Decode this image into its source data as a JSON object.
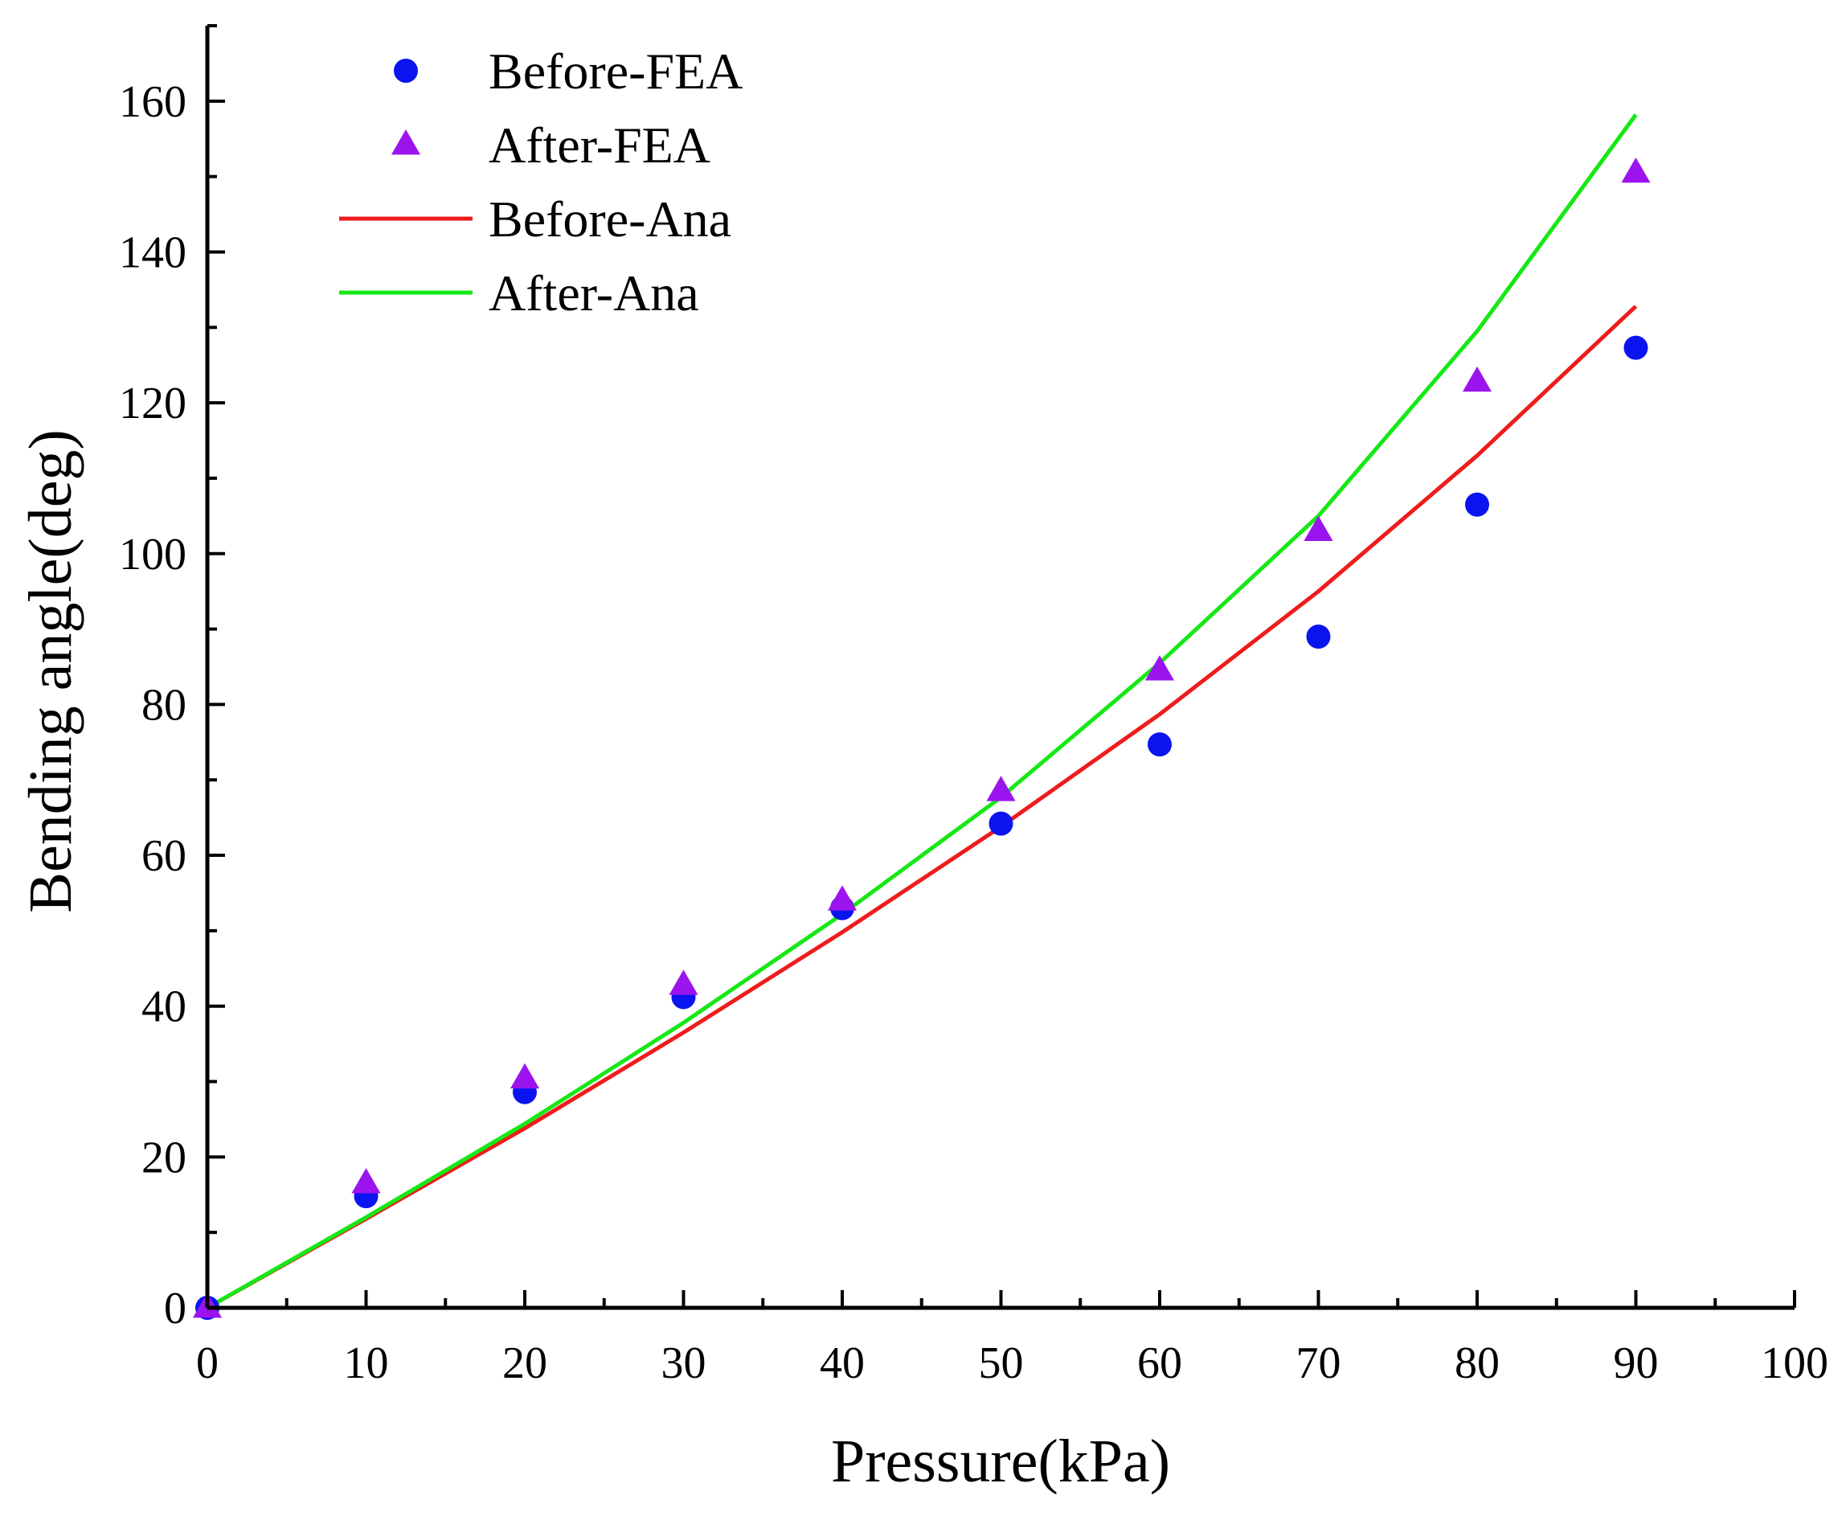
{
  "chart_data": {
    "type": "scatter",
    "title": "",
    "xlabel": "Pressure(kPa)",
    "ylabel": "Bending angle(deg)",
    "xlim": [
      0,
      100
    ],
    "ylim": [
      0,
      170
    ],
    "x_ticks": [
      0,
      10,
      20,
      30,
      40,
      50,
      60,
      70,
      80,
      90,
      100
    ],
    "x_tick_labels": [
      "0",
      "10",
      "20",
      "30",
      "40",
      "50",
      "60",
      "70",
      "80",
      "90",
      "100"
    ],
    "y_ticks": [
      0,
      20,
      40,
      60,
      80,
      100,
      120,
      140,
      160
    ],
    "y_tick_labels": [
      "0",
      "20",
      "40",
      "60",
      "80",
      "100",
      "120",
      "140",
      "160"
    ],
    "legend_position": "top-left",
    "grid": false,
    "series": [
      {
        "name": "Before-FEA",
        "kind": "scatter",
        "marker": "circle",
        "color": "#0a14ee",
        "x": [
          0,
          10,
          20,
          30,
          40,
          50,
          60,
          70,
          80,
          90
        ],
        "y": [
          0,
          14.8,
          28.6,
          41.2,
          53.0,
          64.2,
          74.7,
          89.0,
          106.5,
          127.3
        ]
      },
      {
        "name": "After-FEA",
        "kind": "scatter",
        "marker": "triangle",
        "color": "#9b14ee",
        "x": [
          0,
          10,
          20,
          30,
          40,
          50,
          60,
          70,
          80,
          90
        ],
        "y": [
          0,
          16.5,
          30.4,
          42.8,
          54.0,
          68.5,
          84.5,
          103.0,
          122.8,
          150.5
        ]
      },
      {
        "name": "Before-Ana",
        "kind": "line",
        "color": "#ee1c1c",
        "x": [
          0,
          10,
          20,
          30,
          40,
          50,
          60,
          70,
          80,
          90
        ],
        "y": [
          0,
          11.8,
          23.8,
          36.5,
          49.8,
          63.8,
          78.7,
          95.0,
          113.0,
          132.8
        ]
      },
      {
        "name": "After-Ana",
        "kind": "line",
        "color": "#16e816",
        "x": [
          0,
          10,
          20,
          30,
          40,
          50,
          60,
          70,
          80,
          90
        ],
        "y": [
          0,
          12.0,
          24.4,
          37.8,
          52.2,
          67.7,
          85.5,
          105.0,
          129.5,
          158.2
        ]
      }
    ]
  }
}
